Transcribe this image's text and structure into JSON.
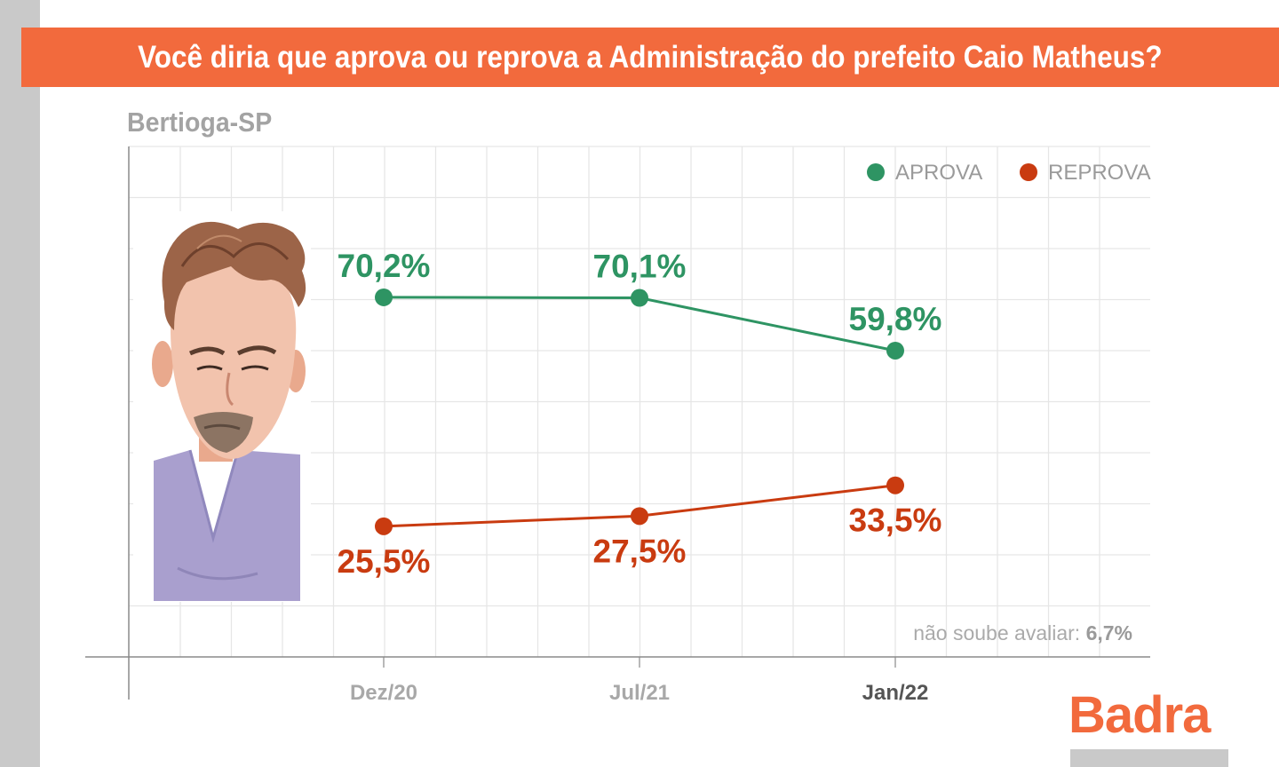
{
  "header": {
    "title": "Você diria que aprova ou reprova a Administração do prefeito Caio Matheus?",
    "region": "Bertioga-SP"
  },
  "brand": {
    "name": "Badra"
  },
  "footnote": {
    "label": "não soube avaliar:",
    "value": "6,7%"
  },
  "colors": {
    "banner": "#f26a3d",
    "aprova": "#2e9463",
    "reprova": "#c93b10",
    "grid": "#e6e6e6",
    "axis": "#8a8a8a"
  },
  "chart_data": {
    "type": "line",
    "title": "",
    "xlabel": "",
    "ylabel": "",
    "categories": [
      "Dez/20",
      "Jul/21",
      "Jan/22"
    ],
    "ylim": [
      0,
      100
    ],
    "grid": true,
    "legend_position": "top-right",
    "series": [
      {
        "name": "APROVA",
        "color": "#2e9463",
        "values": [
          70.2,
          70.1,
          59.8
        ],
        "labels": [
          "70,2%",
          "70,1%",
          "59,8%"
        ],
        "label_position": "above"
      },
      {
        "name": "REPROVA",
        "color": "#c93b10",
        "values": [
          25.5,
          27.5,
          33.5
        ],
        "labels": [
          "25,5%",
          "27,5%",
          "33,5%"
        ],
        "label_position": "below"
      }
    ]
  }
}
